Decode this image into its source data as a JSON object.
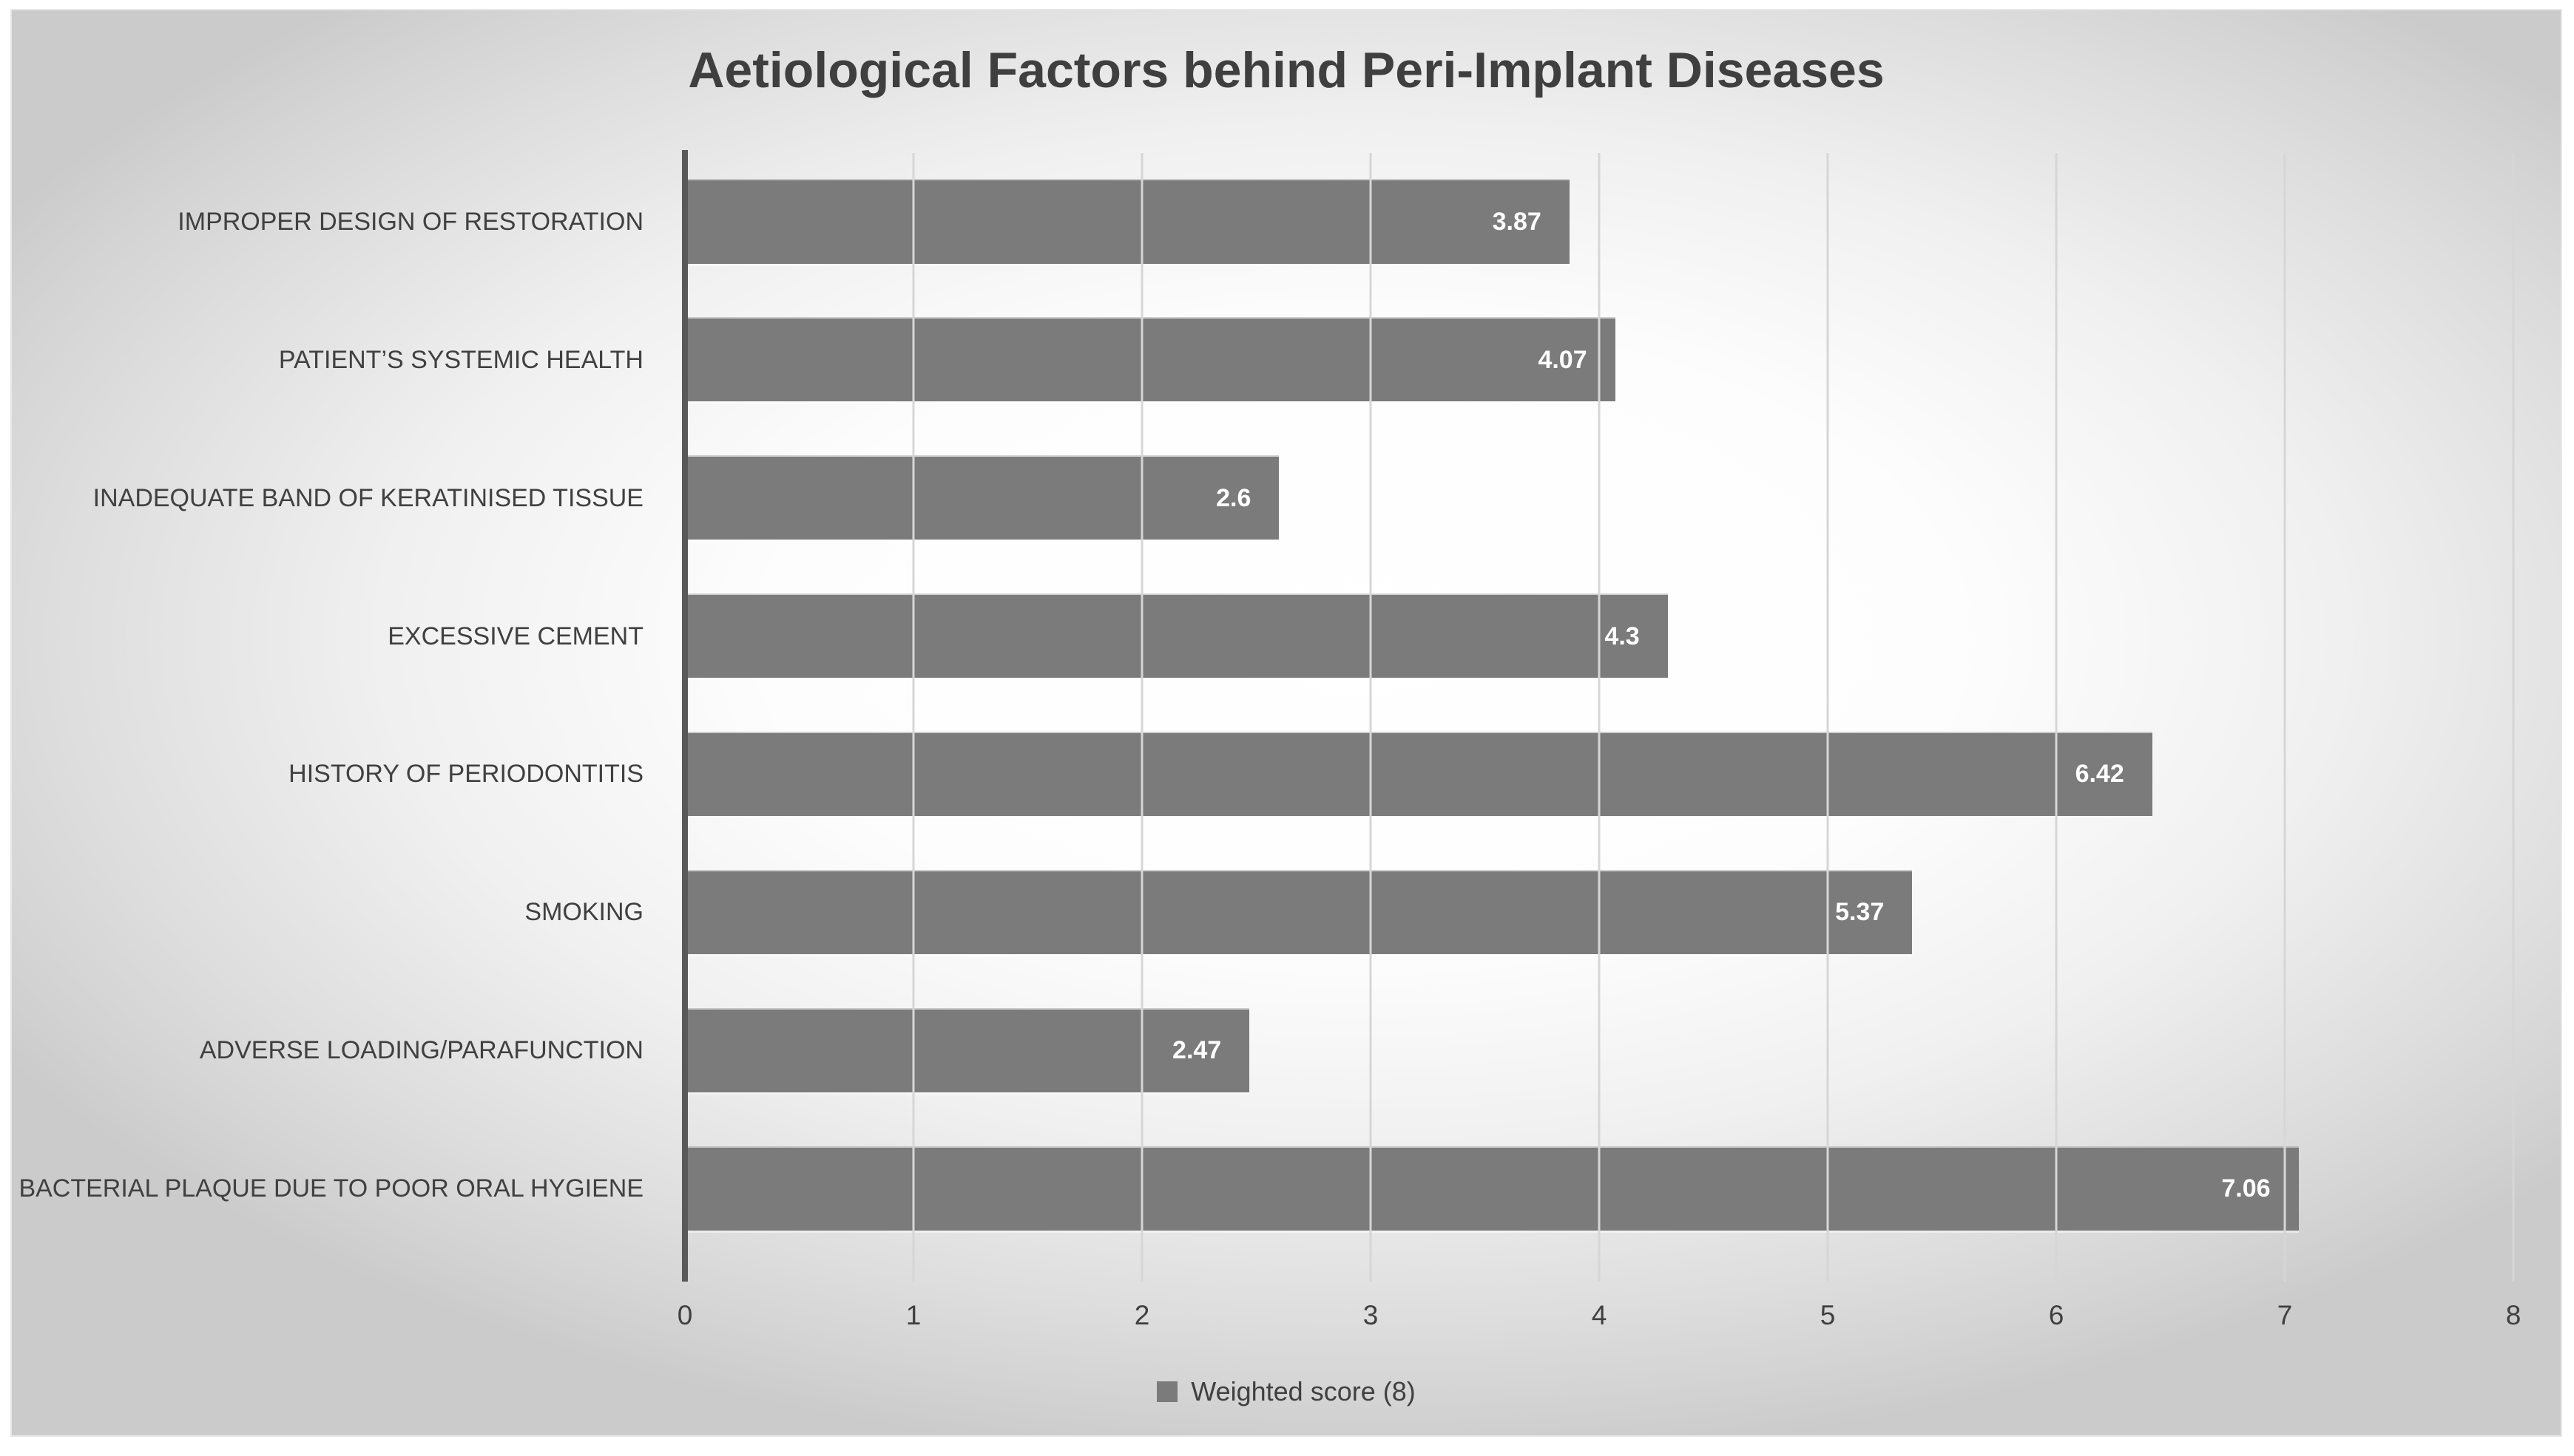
{
  "chart_data": {
    "type": "bar",
    "orientation": "horizontal",
    "title": "Aetiological Factors behind Peri-Implant Diseases",
    "categories": [
      "IMPROPER DESIGN OF RESTORATION",
      "PATIENT’S SYSTEMIC HEALTH",
      "INADEQUATE BAND OF KERATINISED TISSUE",
      "EXCESSIVE CEMENT",
      "HISTORY OF PERIODONTITIS",
      "SMOKING",
      "ADVERSE LOADING/PARAFUNCTION",
      "BACTERIAL PLAQUE DUE TO POOR ORAL HYGIENE"
    ],
    "values": [
      3.87,
      4.07,
      2.6,
      4.3,
      6.42,
      5.37,
      2.47,
      7.06
    ],
    "value_labels": [
      "3.87",
      "4.07",
      "2.6",
      "4.3",
      "6.42",
      "5.37",
      "2.47",
      "7.06"
    ],
    "xlim": [
      0,
      8
    ],
    "x_ticks": [
      0,
      1,
      2,
      3,
      4,
      5,
      6,
      7,
      8
    ],
    "grid": true,
    "legend": {
      "label": "Weighted score (8)",
      "position": "bottom"
    },
    "colors": {
      "bar": "#7b7b7b",
      "value_label": "#ffffff",
      "axis_line": "#595959",
      "gridline": "#d6d6d6",
      "title_text": "#3f3f3f",
      "category_text": "#404040",
      "background_edge": "#cbcbcb",
      "background_center": "#ffffff"
    }
  }
}
